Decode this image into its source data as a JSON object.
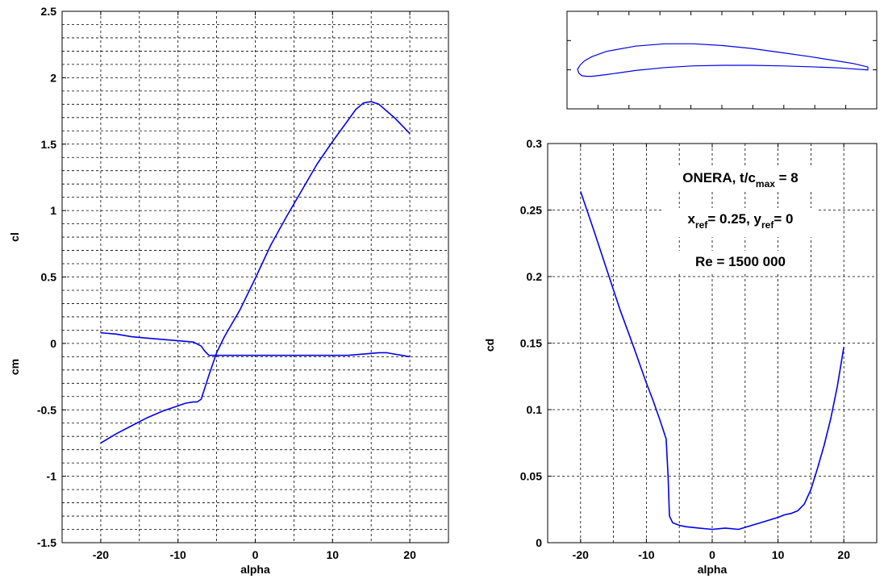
{
  "chart_data": [
    {
      "id": "lift_moment",
      "type": "line",
      "xlabel": "alpha",
      "ylabel": "cl",
      "ylabel2": "cm",
      "xlim": [
        -25,
        25
      ],
      "ylim": [
        -1.5,
        2.5
      ],
      "xticks": [
        -20,
        -10,
        0,
        10,
        20
      ],
      "xtick_labels": [
        "-20",
        "-10",
        "0",
        "10",
        "20"
      ],
      "yticks": [
        -1.5,
        -1,
        -0.5,
        0,
        0.5,
        1,
        1.5,
        2,
        2.5
      ],
      "ytick_labels": [
        "-1.5",
        "-1",
        "-0.5",
        "0",
        "0.5",
        "1",
        "1.5",
        "2",
        "2.5"
      ],
      "grid": true,
      "series": [
        {
          "key": "cl",
          "color": "#0000ee",
          "x": [
            -20,
            -18,
            -16,
            -14,
            -12,
            -10,
            -9,
            -8,
            -7.5,
            -7,
            -6.5,
            -6,
            -5,
            -4,
            -2,
            0,
            2,
            4,
            6,
            8,
            10,
            12,
            13,
            14,
            15,
            16,
            17,
            18,
            19,
            20
          ],
          "y": [
            -0.75,
            -0.68,
            -0.62,
            -0.56,
            -0.51,
            -0.47,
            -0.45,
            -0.44,
            -0.44,
            -0.42,
            -0.33,
            -0.24,
            -0.07,
            0.05,
            0.25,
            0.49,
            0.74,
            0.95,
            1.15,
            1.35,
            1.52,
            1.68,
            1.76,
            1.81,
            1.82,
            1.8,
            1.75,
            1.7,
            1.64,
            1.58
          ]
        },
        {
          "key": "cm",
          "color": "#0000ee",
          "x": [
            -20,
            -18,
            -16,
            -14,
            -12,
            -10,
            -8,
            -7,
            -6.5,
            -6,
            -5,
            -4,
            -2,
            0,
            2,
            4,
            6,
            8,
            10,
            12,
            14,
            16,
            17,
            18,
            19,
            20
          ],
          "y": [
            0.08,
            0.07,
            0.05,
            0.04,
            0.03,
            0.02,
            0.01,
            -0.02,
            -0.06,
            -0.09,
            -0.09,
            -0.09,
            -0.09,
            -0.09,
            -0.09,
            -0.09,
            -0.09,
            -0.09,
            -0.09,
            -0.09,
            -0.08,
            -0.07,
            -0.07,
            -0.08,
            -0.09,
            -0.1
          ]
        }
      ]
    },
    {
      "id": "drag",
      "type": "line",
      "xlabel": "alpha",
      "ylabel": "cd",
      "xlim": [
        -25,
        25
      ],
      "ylim": [
        0,
        0.3
      ],
      "xticks": [
        -20,
        -10,
        0,
        10,
        20
      ],
      "xtick_labels": [
        "-20",
        "-10",
        "0",
        "10",
        "20"
      ],
      "yticks": [
        0,
        0.05,
        0.1,
        0.15,
        0.2,
        0.25,
        0.3
      ],
      "ytick_labels": [
        "0",
        "0.05",
        "0.1",
        "0.15",
        "0.2",
        "0.25",
        "0.3"
      ],
      "grid": true,
      "series": [
        {
          "key": "cd",
          "color": "#0000ee",
          "x": [
            -20,
            -18,
            -16,
            -14,
            -12,
            -10,
            -9,
            -8,
            -7,
            -6.7,
            -6.5,
            -6,
            -5,
            -4,
            -2,
            0,
            2,
            4,
            6,
            8,
            10,
            11,
            12,
            13,
            14,
            15,
            16,
            17,
            18,
            19,
            20
          ],
          "y": [
            0.264,
            0.235,
            0.205,
            0.175,
            0.148,
            0.12,
            0.107,
            0.093,
            0.078,
            0.05,
            0.02,
            0.015,
            0.013,
            0.012,
            0.011,
            0.01,
            0.011,
            0.01,
            0.013,
            0.016,
            0.019,
            0.021,
            0.022,
            0.024,
            0.029,
            0.04,
            0.056,
            0.073,
            0.093,
            0.117,
            0.147
          ]
        }
      ]
    },
    {
      "id": "airfoil",
      "type": "line",
      "color": "#0000ee",
      "upper_x": [
        0,
        0.01,
        0.025,
        0.05,
        0.1,
        0.2,
        0.3,
        0.4,
        0.5,
        0.6,
        0.7,
        0.8,
        0.9,
        0.95,
        1.0
      ],
      "upper_y": [
        0,
        0.016,
        0.03,
        0.044,
        0.062,
        0.08,
        0.088,
        0.088,
        0.082,
        0.072,
        0.058,
        0.044,
        0.028,
        0.02,
        0.008
      ],
      "lower_x": [
        0,
        0.005,
        0.015,
        0.03,
        0.05,
        0.1,
        0.2,
        0.3,
        0.4,
        0.5,
        0.6,
        0.7,
        0.8,
        0.9,
        1.0
      ],
      "lower_y": [
        0,
        -0.014,
        -0.022,
        -0.024,
        -0.024,
        -0.018,
        -0.004,
        0.006,
        0.012,
        0.014,
        0.014,
        0.012,
        0.009,
        0.005,
        -0.002
      ]
    }
  ],
  "annotations": {
    "line1_main": "ONERA, t/c",
    "line1_sub": "max",
    "line1_tail": " = 8",
    "line2_a": "x",
    "line2_a_sub": "ref",
    "line2_b": "= 0.25, y",
    "line2_b_sub": "ref",
    "line2_tail": "= 0",
    "line3": "Re = 1500 000"
  }
}
